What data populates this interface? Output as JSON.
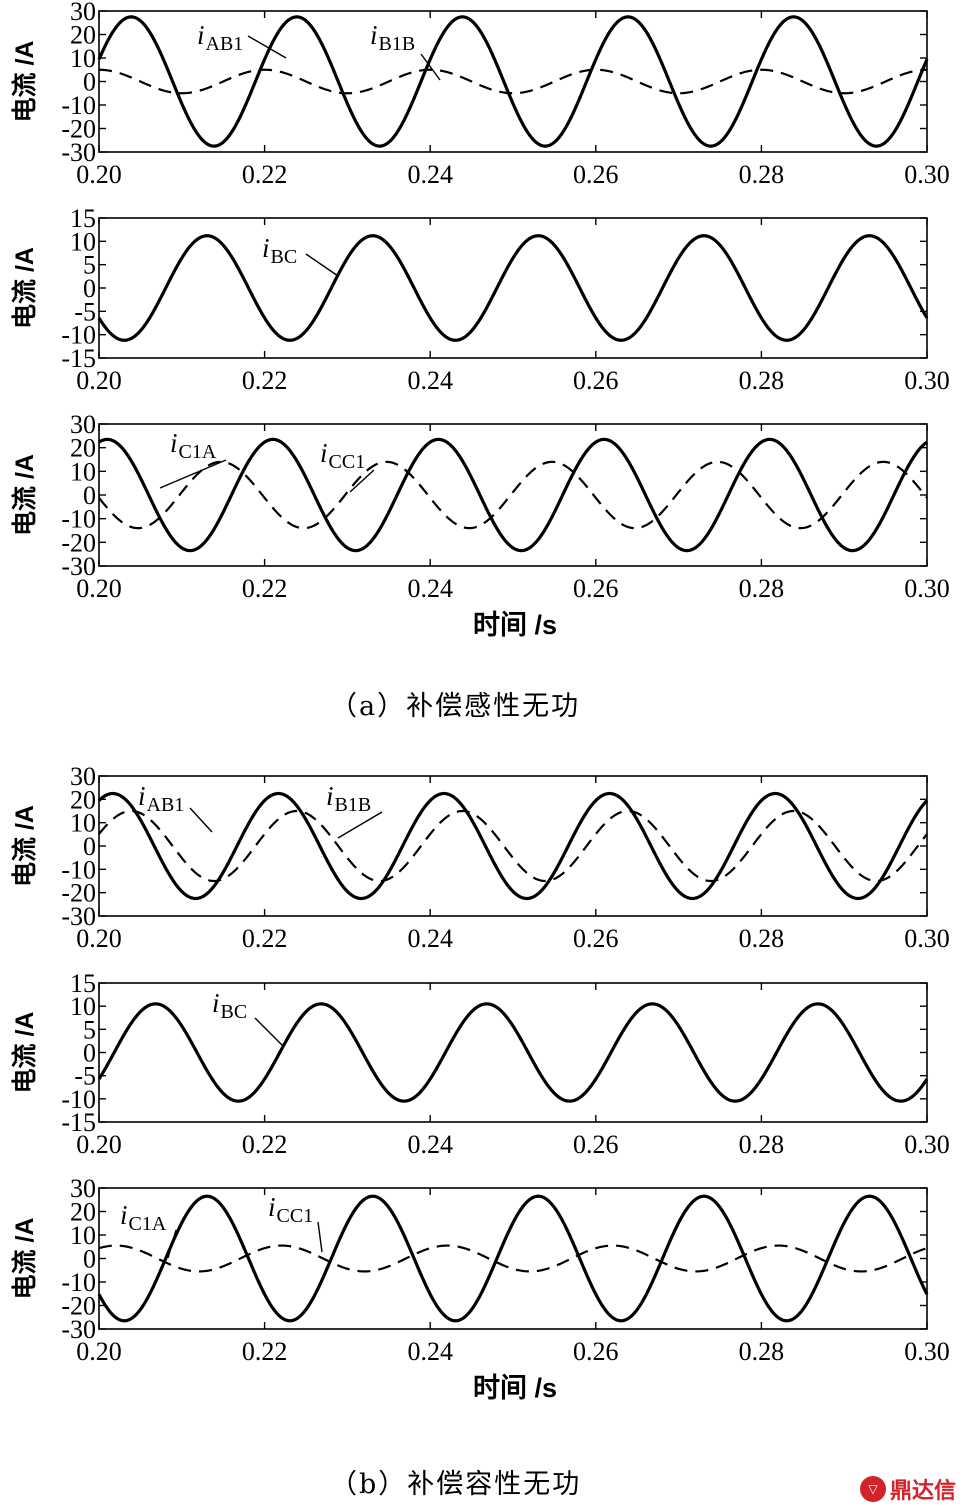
{
  "figure": {
    "groups": [
      {
        "caption": "（a）补偿感性无功",
        "xlabel": "时间 /s"
      },
      {
        "caption": "（b）补偿容性无功",
        "xlabel": "时间 /s"
      }
    ],
    "logo_text": "鼎达信"
  },
  "chart_data": [
    {
      "type": "line",
      "group": "a",
      "ylabel": "电流 /A",
      "xlim": [
        0.2,
        0.3
      ],
      "ylim": [
        -30,
        30
      ],
      "xticks": [
        "0.20",
        "0.22",
        "0.24",
        "0.26",
        "0.28",
        "0.30"
      ],
      "yticks": [
        "30",
        "20",
        "10",
        "0",
        "-10",
        "-20",
        "-30"
      ],
      "grid": false,
      "series": [
        {
          "name": "iAB1",
          "style": "solid",
          "amplitude": 27.5,
          "period": 0.02,
          "phase_deg": 20,
          "label_main": "i",
          "label_sub": "AB1"
        },
        {
          "name": "iB1B",
          "style": "dashed",
          "amplitude": 5,
          "period": 0.02,
          "phase_deg": 90,
          "label_main": "i",
          "label_sub": "B1B"
        }
      ]
    },
    {
      "type": "line",
      "group": "a",
      "ylabel": "电流 /A",
      "xlim": [
        0.2,
        0.3
      ],
      "ylim": [
        -15,
        15
      ],
      "xticks": [
        "0.20",
        "0.22",
        "0.24",
        "0.26",
        "0.28",
        "0.30"
      ],
      "yticks": [
        "15",
        "10",
        "5",
        "0",
        "-5",
        "-10",
        "-15"
      ],
      "grid": false,
      "series": [
        {
          "name": "iBC",
          "style": "solid",
          "amplitude": 11.2,
          "period": 0.02,
          "phase_deg": -145,
          "label_main": "i",
          "label_sub": "BC"
        }
      ]
    },
    {
      "type": "line",
      "group": "a",
      "ylabel": "电流 /A",
      "xlim": [
        0.2,
        0.3
      ],
      "ylim": [
        -30,
        30
      ],
      "xticks": [
        "0.20",
        "0.22",
        "0.24",
        "0.26",
        "0.28",
        "0.30"
      ],
      "yticks": [
        "30",
        "20",
        "10",
        "0",
        "-10",
        "-20",
        "-30"
      ],
      "grid": false,
      "series": [
        {
          "name": "iC1A",
          "style": "solid",
          "amplitude": 23.5,
          "period": 0.02,
          "phase_deg": 72,
          "label_main": "i",
          "label_sub": "C1A"
        },
        {
          "name": "iCC1",
          "style": "dashed",
          "amplitude": 14,
          "period": 0.02,
          "phase_deg": -175,
          "label_main": "i",
          "label_sub": "CC1"
        }
      ]
    },
    {
      "type": "line",
      "group": "b",
      "ylabel": "电流 /A",
      "xlim": [
        0.2,
        0.3
      ],
      "ylim": [
        -30,
        30
      ],
      "xticks": [
        "0.20",
        "0.22",
        "0.24",
        "0.26",
        "0.28",
        "0.30"
      ],
      "yticks": [
        "30",
        "20",
        "10",
        "0",
        "-10",
        "-20",
        "-30"
      ],
      "grid": false,
      "series": [
        {
          "name": "iAB1",
          "style": "solid",
          "amplitude": 22.5,
          "period": 0.02,
          "phase_deg": 60,
          "label_main": "i",
          "label_sub": "AB1"
        },
        {
          "name": "iB1B",
          "style": "dashed",
          "amplitude": 15,
          "period": 0.02,
          "phase_deg": 20,
          "label_main": "i",
          "label_sub": "B1B"
        }
      ]
    },
    {
      "type": "line",
      "group": "b",
      "ylabel": "电流 /A",
      "xlim": [
        0.2,
        0.3
      ],
      "ylim": [
        -15,
        15
      ],
      "xticks": [
        "0.20",
        "0.22",
        "0.24",
        "0.26",
        "0.28",
        "0.30"
      ],
      "yticks": [
        "15",
        "10",
        "5",
        "0",
        "-5",
        "-10",
        "-15"
      ],
      "grid": false,
      "series": [
        {
          "name": "iBC",
          "style": "solid",
          "amplitude": 10.5,
          "period": 0.02,
          "phase_deg": -33,
          "label_main": "i",
          "label_sub": "BC"
        }
      ]
    },
    {
      "type": "line",
      "group": "b",
      "ylabel": "电流 /A",
      "xlim": [
        0.2,
        0.3
      ],
      "ylim": [
        -30,
        30
      ],
      "xticks": [
        "0.20",
        "0.22",
        "0.24",
        "0.26",
        "0.28",
        "0.30"
      ],
      "yticks": [
        "30",
        "20",
        "10",
        "0",
        "-10",
        "-20",
        "-30"
      ],
      "grid": false,
      "series": [
        {
          "name": "iC1A",
          "style": "solid",
          "amplitude": 26.5,
          "period": 0.02,
          "phase_deg": -145,
          "label_main": "i",
          "label_sub": "C1A"
        },
        {
          "name": "iCC1",
          "style": "dashed",
          "amplitude": 5.5,
          "period": 0.02,
          "phase_deg": 53,
          "label_main": "i",
          "label_sub": "CC1"
        }
      ]
    }
  ]
}
